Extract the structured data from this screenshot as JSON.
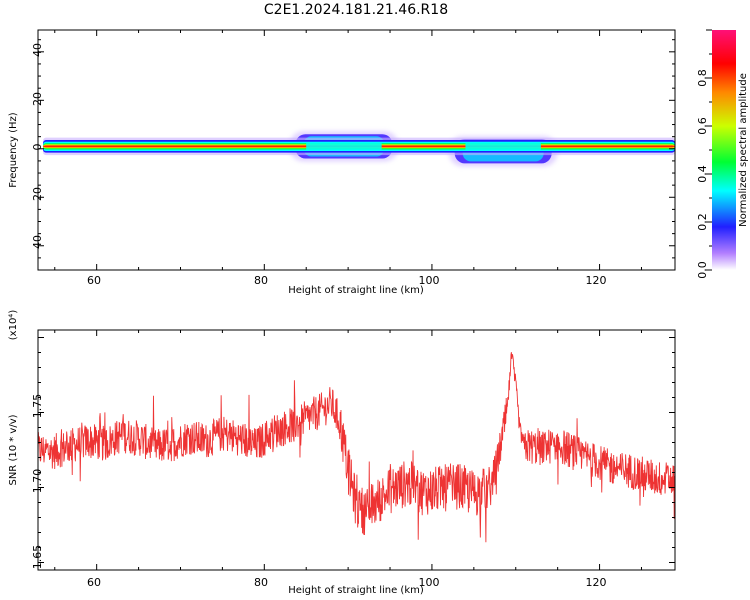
{
  "title": "C2E1.2024.181.21.46.R18",
  "chart_data": [
    {
      "type": "heatmap",
      "xlabel": "Height of straight line (km)",
      "ylabel": "Frequency (Hz)",
      "xlim": [
        53,
        129
      ],
      "ylim": [
        -50,
        49
      ],
      "xticks": [
        "60",
        "80",
        "100",
        "120"
      ],
      "yticks": [
        "-40",
        "-20",
        "0",
        "20",
        "40"
      ],
      "colorbar": {
        "label": "Normalized spectral amplitude",
        "range": [
          0.0,
          1.0
        ],
        "ticks": [
          "0.0",
          "0.2",
          "0.4",
          "0.6",
          "0.8"
        ],
        "colormap": "rainbow"
      },
      "band_center_hz": 1,
      "features": [
        {
          "x_range": [
            83,
            96
          ],
          "y_range": [
            -4,
            6
          ]
        },
        {
          "x_range": [
            102,
            115
          ],
          "y_range": [
            -6,
            4
          ]
        }
      ]
    },
    {
      "type": "line",
      "xlabel": "Height of straight line (km)",
      "ylabel": "SNR (10 * v/v)",
      "multiplier": "(x10⁴)",
      "xlim": [
        53,
        129
      ],
      "ylim": [
        1.645,
        1.805
      ],
      "xticks": [
        "60",
        "80",
        "100",
        "120"
      ],
      "yticks": [
        "1.65",
        "1.70",
        "1.75"
      ],
      "color": "#ee3333",
      "series": [
        {
          "x": [
            53,
            55,
            57,
            59,
            61,
            63,
            65,
            67,
            69,
            71,
            73,
            75,
            77,
            79,
            81,
            83,
            85,
            87,
            88,
            89,
            90,
            91,
            92,
            93,
            95,
            97,
            99,
            101,
            103,
            105,
            107,
            108,
            109,
            109.5,
            110,
            110.5,
            111,
            113,
            115,
            117,
            119,
            121,
            123,
            125,
            127,
            129
          ],
          "y": [
            1.725,
            1.724,
            1.728,
            1.731,
            1.729,
            1.735,
            1.733,
            1.727,
            1.729,
            1.734,
            1.731,
            1.736,
            1.733,
            1.728,
            1.737,
            1.741,
            1.746,
            1.752,
            1.756,
            1.744,
            1.712,
            1.688,
            1.684,
            1.688,
            1.698,
            1.703,
            1.697,
            1.699,
            1.701,
            1.696,
            1.699,
            1.722,
            1.752,
            1.788,
            1.768,
            1.738,
            1.728,
            1.726,
            1.729,
            1.723,
            1.719,
            1.714,
            1.712,
            1.709,
            1.706,
            1.705
          ]
        }
      ]
    }
  ]
}
